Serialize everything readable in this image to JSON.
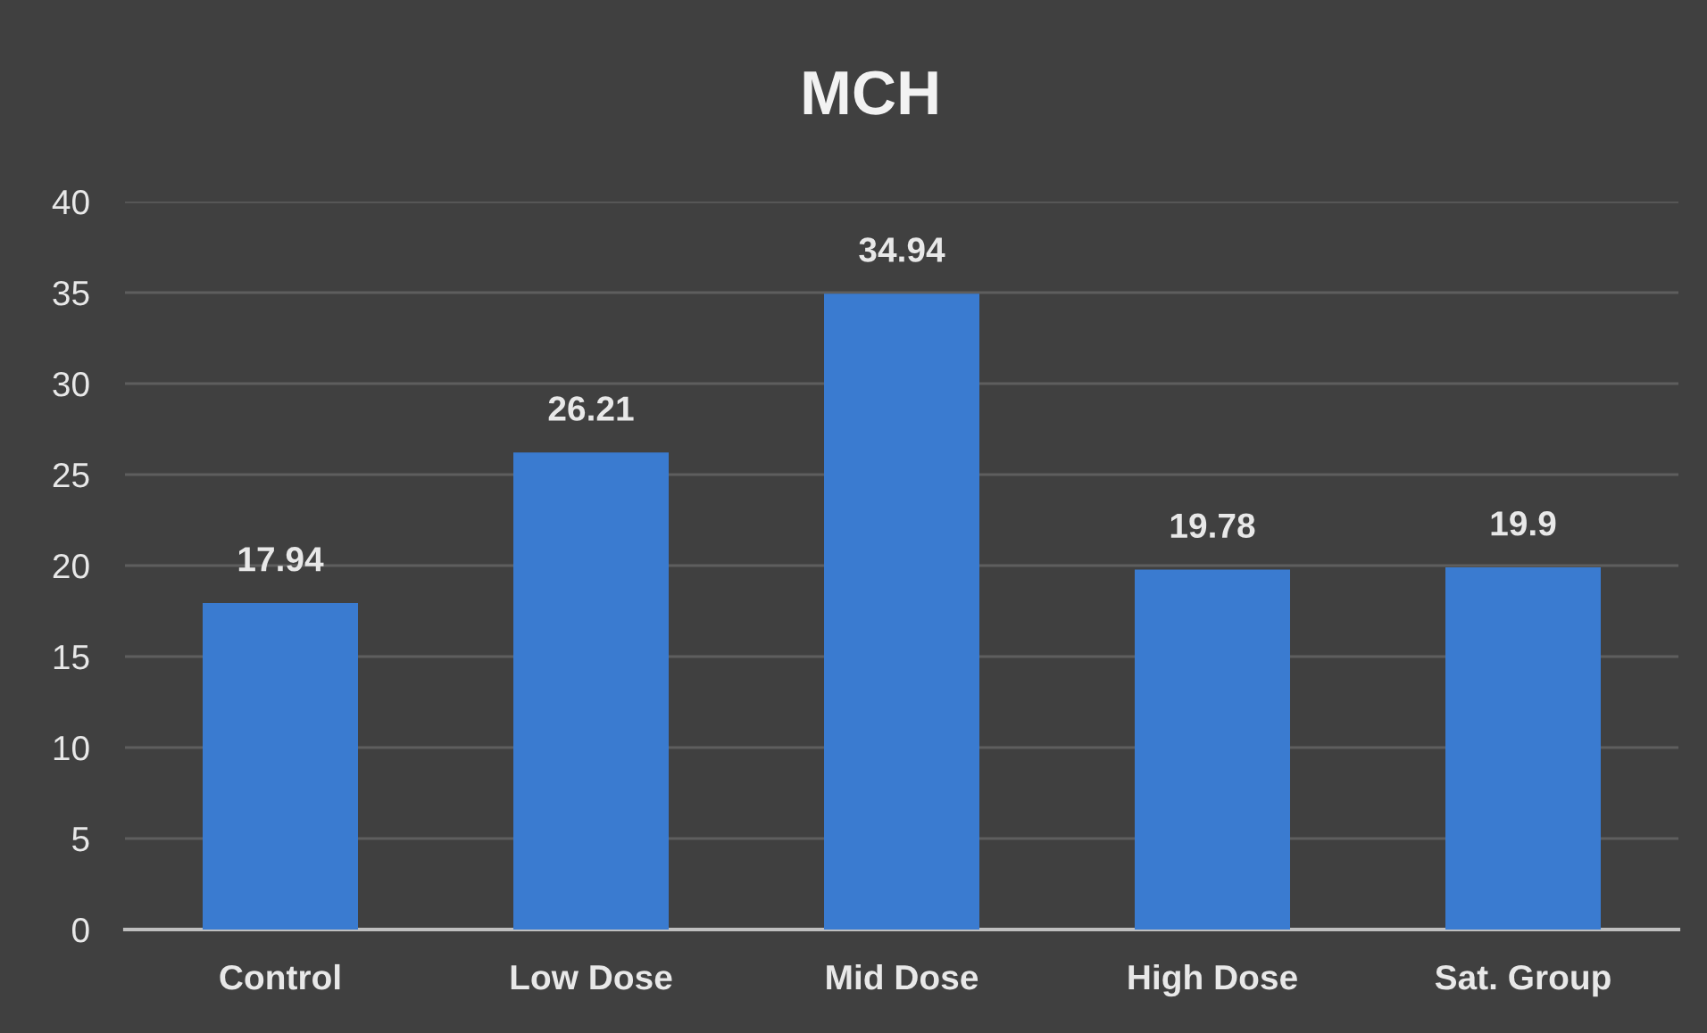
{
  "chart_data": {
    "type": "bar",
    "title": "MCH",
    "categories": [
      "Control",
      "Low Dose",
      "Mid Dose",
      "High Dose",
      "Sat. Group"
    ],
    "values": [
      17.94,
      26.21,
      34.94,
      19.78,
      19.9
    ],
    "color": "#3a7bd0",
    "ylim": [
      0,
      40
    ],
    "yticks": [
      0,
      5,
      10,
      15,
      20,
      25,
      30,
      35,
      40
    ],
    "grid": "y",
    "data_labels": true
  }
}
